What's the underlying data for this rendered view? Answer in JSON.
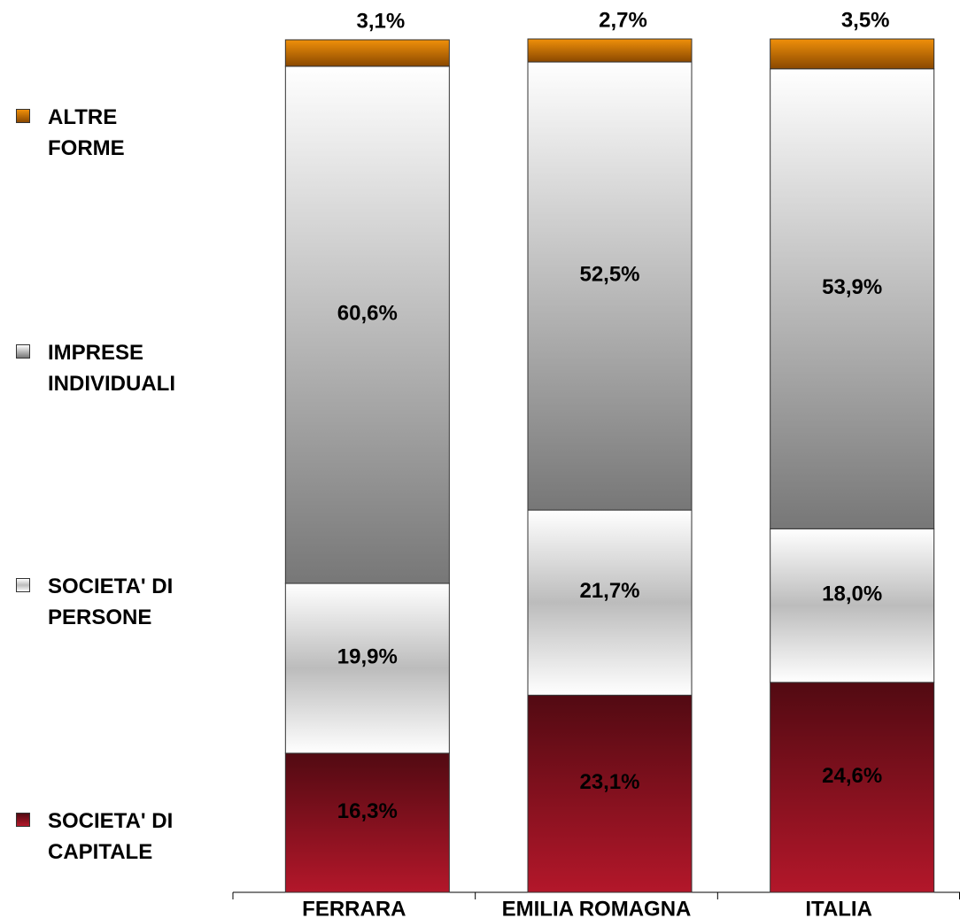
{
  "chart_data": {
    "type": "stacked_bar",
    "categories": [
      "FERRARA",
      "EMILIA ROMAGNA",
      "ITALIA"
    ],
    "series": [
      {
        "name": "SOCIETA' DI CAPITALE",
        "color": "#b3172a",
        "values": [
          16.3,
          23.1,
          24.6
        ],
        "value_labels": [
          "16,3%",
          "23,1%",
          "24,6%"
        ]
      },
      {
        "name": "SOCIETA' DI PERSONE",
        "color": "#bcbcbc",
        "values": [
          19.9,
          21.7,
          18.0
        ],
        "value_labels": [
          "19,9%",
          "21,7%",
          "18,0%"
        ]
      },
      {
        "name": "IMPRESE INDIVIDUALI",
        "color": "#777777",
        "values": [
          60.6,
          52.5,
          53.9
        ],
        "value_labels": [
          "60,6%",
          "52,5%",
          "53,9%"
        ]
      },
      {
        "name": "ALTRE FORME",
        "color": "#f0900a",
        "values": [
          3.1,
          2.7,
          3.5
        ],
        "value_labels": [
          "3,1%",
          "2,7%",
          "3,5%"
        ]
      }
    ],
    "legend": "left"
  }
}
